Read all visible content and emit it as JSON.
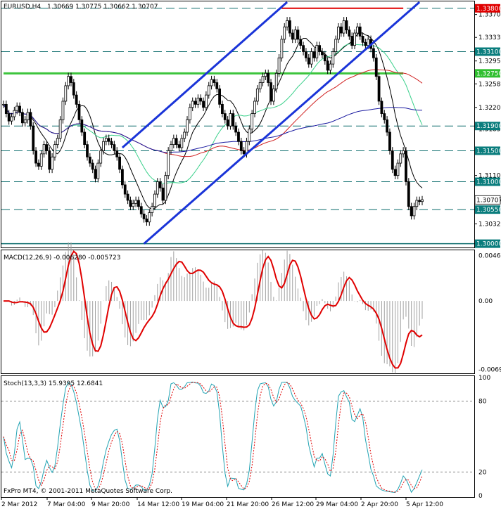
{
  "chart_data": [
    {
      "type": "candlestick",
      "symbol": "EURUSD,H4",
      "ohlc_text": "1.30669 1.30775 1.30662 1.30707",
      "price_ticks": [
        "1.33700",
        "1.33330",
        "1.32950",
        "1.32580",
        "1.32200",
        "1.31850",
        "1.31470",
        "1.31100",
        "1.30720",
        "1.30320"
      ],
      "level_labels": [
        {
          "text": "1.33800",
          "value": 1.338,
          "color": "#e00000"
        },
        {
          "text": "1.33100",
          "value": 1.331,
          "color": "#0a7d7d"
        },
        {
          "text": "1.32750",
          "value": 1.3275,
          "color": "#2fbf2f"
        },
        {
          "text": "1.31900",
          "value": 1.319,
          "color": "#0a7d7d"
        },
        {
          "text": "1.31500",
          "value": 1.315,
          "color": "#0a7d7d"
        },
        {
          "text": "1.31000",
          "value": 1.31,
          "color": "#0a7d7d"
        },
        {
          "text": "1.30707",
          "value": 1.30707,
          "color": "#ffffff"
        },
        {
          "text": "1.30550",
          "value": 1.3055,
          "color": "#0a7d7d"
        },
        {
          "text": "1.30000",
          "value": 1.3,
          "color": "#0a7d7d"
        }
      ],
      "horizontal_dashed_levels": [
        1.338,
        1.331,
        1.319,
        1.315,
        1.31,
        1.3055
      ],
      "support_solid_level": 1.3,
      "resistance_red": {
        "from_bar": 103,
        "to_bar": 148,
        "value": 1.338
      },
      "support_green": {
        "from_bar": 0,
        "to_bar": 148,
        "value": 1.3275
      },
      "y_range": [
        1.2995,
        1.339
      ],
      "closes": [
        1.3225,
        1.321,
        1.3198,
        1.3205,
        1.3215,
        1.3222,
        1.3212,
        1.3195,
        1.32,
        1.3212,
        1.319,
        1.315,
        1.313,
        1.3125,
        1.3145,
        1.316,
        1.315,
        1.312,
        1.314,
        1.316,
        1.317,
        1.32,
        1.323,
        1.3255,
        1.327,
        1.326,
        1.324,
        1.3225,
        1.32,
        1.318,
        1.316,
        1.314,
        1.313,
        1.312,
        1.3105,
        1.313,
        1.315,
        1.3165,
        1.317,
        1.3165,
        1.316,
        1.315,
        1.314,
        1.312,
        1.3095,
        1.308,
        1.307,
        1.306,
        1.3065,
        1.307,
        1.306,
        1.3048,
        1.304,
        1.3035,
        1.305,
        1.306,
        1.308,
        1.31,
        1.309,
        1.307,
        1.311,
        1.315,
        1.316,
        1.317,
        1.316,
        1.3155,
        1.317,
        1.318,
        1.32,
        1.322,
        1.323,
        1.3225,
        1.3235,
        1.323,
        1.322,
        1.324,
        1.3255,
        1.3265,
        1.326,
        1.325,
        1.3225,
        1.321,
        1.32,
        1.319,
        1.321,
        1.319,
        1.318,
        1.3165,
        1.315,
        1.3145,
        1.3165,
        1.3185,
        1.321,
        1.323,
        1.325,
        1.326,
        1.327,
        1.3275,
        1.326,
        1.323,
        1.325,
        1.3275,
        1.33,
        1.333,
        1.335,
        1.336,
        1.334,
        1.333,
        1.3345,
        1.333,
        1.332,
        1.331,
        1.33,
        1.329,
        1.331,
        1.33,
        1.332,
        1.331,
        1.3305,
        1.3295,
        1.328,
        1.329,
        1.331,
        1.333,
        1.335,
        1.334,
        1.336,
        1.3345,
        1.3335,
        1.332,
        1.334,
        1.335,
        1.3335,
        1.3325,
        1.332,
        1.333,
        1.3315,
        1.33,
        1.327,
        1.323,
        1.321,
        1.32,
        1.318,
        1.315,
        1.312,
        1.311,
        1.313,
        1.3145,
        1.315,
        1.31,
        1.306,
        1.3045,
        1.306,
        1.307,
        1.3068,
        1.3071
      ],
      "series": [
        {
          "name": "MA-fast",
          "color": "#000000",
          "period": 10
        },
        {
          "name": "MA-mid",
          "color": "#38d08a",
          "period": 26
        },
        {
          "name": "MA-slow",
          "color": "#d02020",
          "period": 60
        },
        {
          "name": "MA-long",
          "color": "#1a1aa0",
          "period": 110
        }
      ],
      "trend_channel": {
        "color": "#1a34d8",
        "upper": [
          [
            44,
            1.3155
          ],
          [
            105,
            1.339
          ]
        ],
        "lower": [
          [
            52,
            1.3
          ],
          [
            154,
            1.339
          ]
        ]
      }
    },
    {
      "type": "macd",
      "label": "MACD(12,26,9) -0.006280 -0.005723",
      "ticks": [
        "0.0046",
        "0.00",
        "-0.00696"
      ],
      "y_range": [
        -0.0072,
        0.005
      ],
      "signal_color": "#e00000",
      "histogram_color": "#a0a0a0"
    },
    {
      "type": "stochastic",
      "label": "Stoch(13,3,3) 15.9395 12.6841",
      "ticks": [
        "100",
        "80",
        "20",
        "0"
      ],
      "levels": [
        80,
        20
      ],
      "y_range": [
        0,
        100
      ],
      "main_color": "#22a3b3",
      "signal_color": "#e00000"
    }
  ],
  "x_axis_labels": [
    "2 Mar 2012",
    "7 Mar 04:00",
    "9 Mar 20:00",
    "14 Mar 12:00",
    "19 Mar 04:00",
    "21 Mar 20:00",
    "26 Mar 12:00",
    "29 Mar 04:00",
    "2 Apr 20:00",
    "5 Apr 12:00"
  ],
  "copyright": "FxPro MT4, © 2001-2011 MetaQuotes Software Corp."
}
